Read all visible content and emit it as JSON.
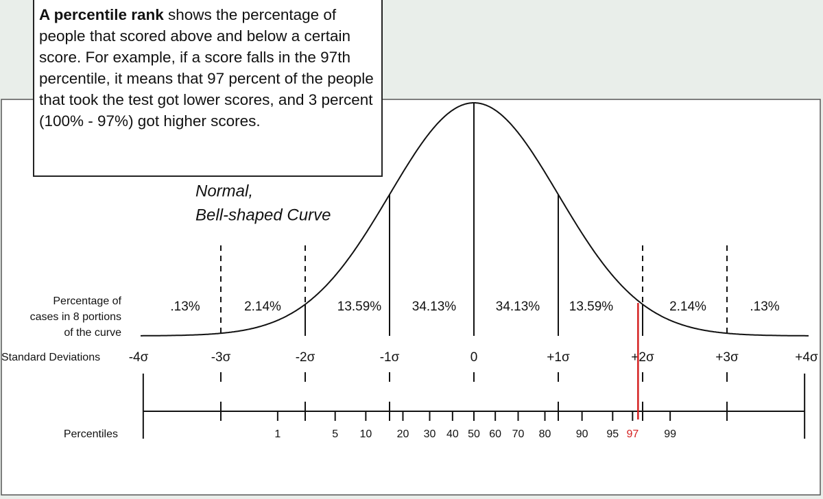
{
  "info_box": {
    "bold": "A percentile rank",
    "text": " shows the percentage of people that scored above and below a certain score. For example, if a score falls in the 97th percentile, it means that 97 percent of the people that took the test got lower scores, and 3 percent (100% - 97%) got higher scores."
  },
  "curve_title": [
    "Normal,",
    "Bell-shaped Curve"
  ],
  "percentage_heading": [
    "Percentage of",
    "cases in 8 portions",
    "of the curve"
  ],
  "portions": [
    ".13%",
    "2.14%",
    "13.59%",
    "34.13%",
    "34.13%",
    "13.59%",
    "2.14%",
    ".13%"
  ],
  "sd_heading": "Standard Deviations",
  "sd_labels": [
    "-4σ",
    "-3σ",
    "-2σ",
    "-1σ",
    "0",
    "+1σ",
    "+2σ",
    "+3σ",
    "+4σ"
  ],
  "percentiles_heading": "Percentiles",
  "percentiles": [
    1,
    5,
    10,
    20,
    30,
    40,
    50,
    60,
    70,
    80,
    90,
    95,
    97,
    99
  ],
  "highlight_percentile": 97
}
